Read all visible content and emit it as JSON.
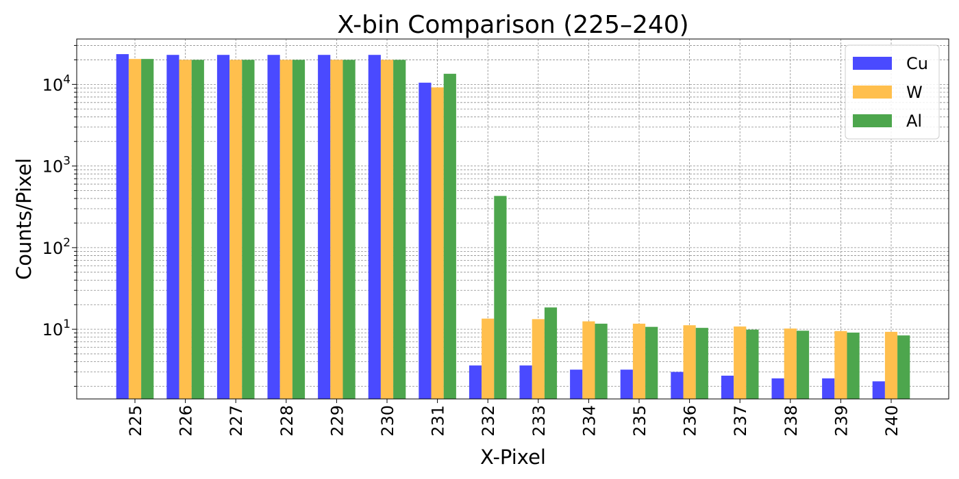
{
  "chart_data": {
    "type": "bar",
    "title": "X-bin Comparison (225–240)",
    "xlabel": "X-Pixel",
    "ylabel": "Counts/Pixel",
    "yscale": "log",
    "ylim": [
      1.4,
      36000
    ],
    "y_ticks": [
      {
        "value": 10,
        "base": "10",
        "exp": "1"
      },
      {
        "value": 100,
        "base": "10",
        "exp": "2"
      },
      {
        "value": 1000,
        "base": "10",
        "exp": "3"
      },
      {
        "value": 10000,
        "base": "10",
        "exp": "4"
      }
    ],
    "grid": true,
    "legend_position": "top-right",
    "categories": [
      "225",
      "226",
      "227",
      "228",
      "229",
      "230",
      "231",
      "232",
      "233",
      "234",
      "235",
      "236",
      "237",
      "238",
      "239",
      "240"
    ],
    "series": [
      {
        "name": "Cu",
        "color": "#4a4aff",
        "values": [
          23500,
          23000,
          23000,
          23000,
          23000,
          23000,
          10500,
          3.6,
          3.6,
          3.2,
          3.2,
          3.0,
          2.7,
          2.5,
          2.5,
          2.3
        ]
      },
      {
        "name": "W",
        "color": "#ffbf4d",
        "values": [
          20500,
          20000,
          20000,
          20000,
          20000,
          20000,
          9200,
          13.5,
          13.3,
          12.5,
          11.7,
          11.2,
          10.8,
          10.2,
          9.5,
          9.3
        ]
      },
      {
        "name": "Al",
        "color": "#4da64d",
        "values": [
          20500,
          20000,
          20000,
          20000,
          20000,
          20000,
          13500,
          430,
          18.5,
          11.7,
          10.7,
          10.4,
          9.9,
          9.6,
          9.1,
          8.4
        ]
      }
    ]
  }
}
